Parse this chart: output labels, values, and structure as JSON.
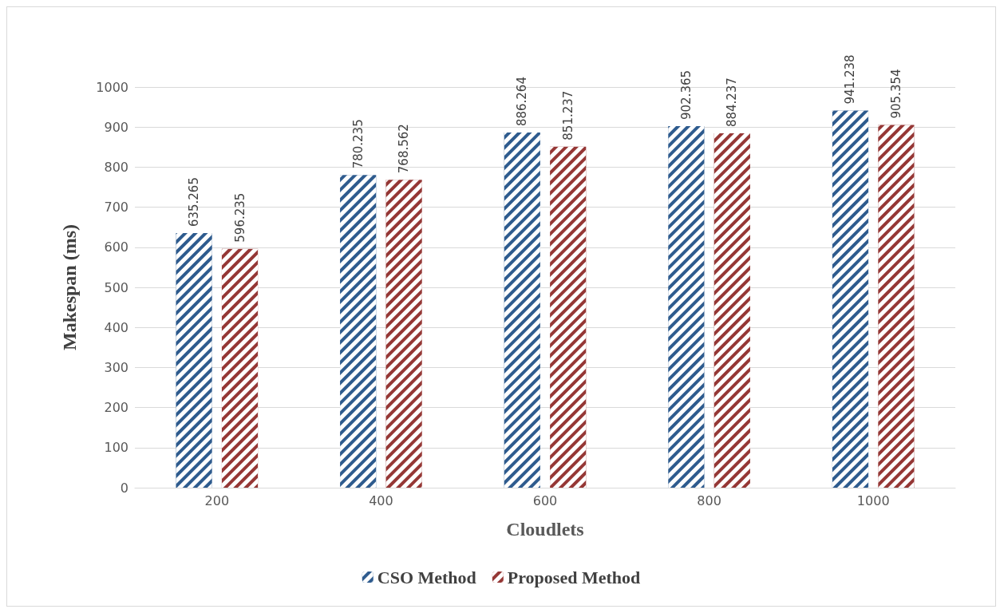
{
  "chart_data": {
    "type": "bar",
    "xlabel": "Cloudlets",
    "ylabel": "Makespan (ms)",
    "categories": [
      "200",
      "400",
      "600",
      "800",
      "1000"
    ],
    "series": [
      {
        "name": "CSO Method",
        "color": "#2e5b8e",
        "values": [
          635.265,
          780.235,
          886.264,
          902.365,
          941.238
        ]
      },
      {
        "name": "Proposed Method",
        "color": "#953735",
        "values": [
          596.235,
          768.562,
          851.237,
          884.237,
          905.354
        ]
      }
    ],
    "ylim": [
      0,
      1000
    ],
    "yticks": [
      0,
      100,
      200,
      300,
      400,
      500,
      600,
      700,
      800,
      900,
      1000
    ],
    "grid": "y",
    "legend": "bottom",
    "data_labels": true
  }
}
